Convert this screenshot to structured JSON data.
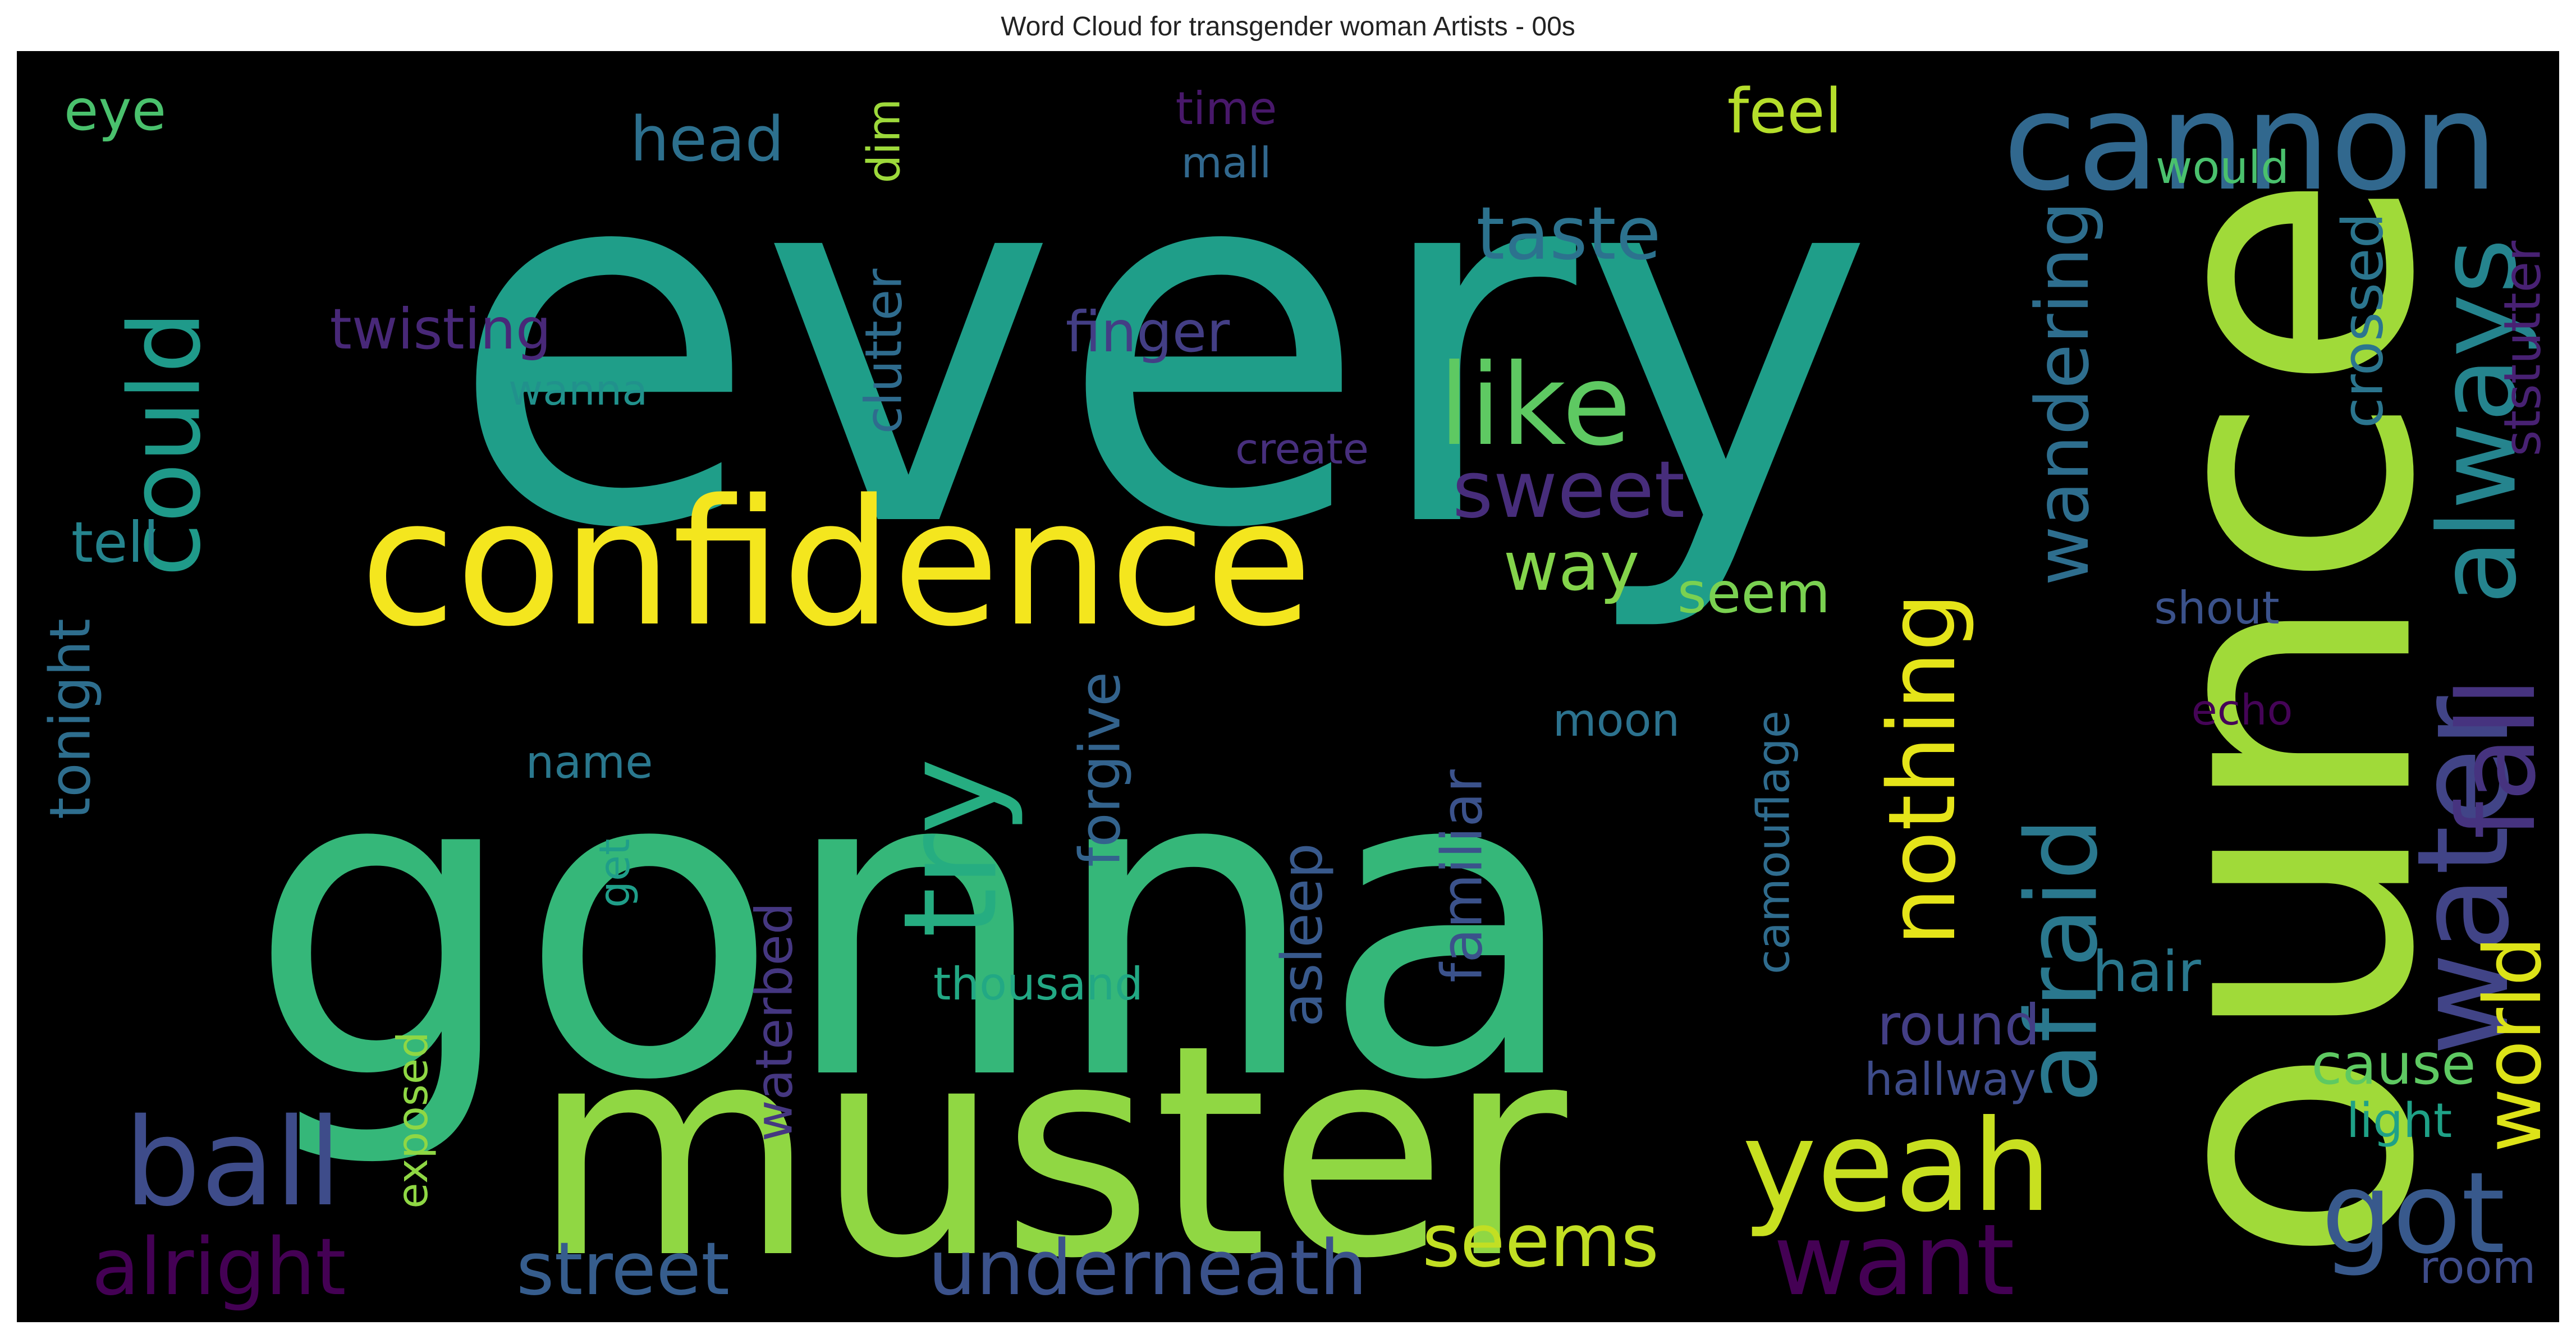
{
  "chart_data": {
    "type": "wordcloud",
    "title": "Word Cloud for transgender woman Artists - 00s",
    "background": "#000000",
    "words": [
      {
        "text": "every",
        "color": "#1f9e89"
      },
      {
        "text": "gonna",
        "color": "#35b779"
      },
      {
        "text": "muster",
        "color": "#90d743"
      },
      {
        "text": "ounce",
        "color": "#a0da39"
      },
      {
        "text": "confidence",
        "color": "#f4e61e"
      },
      {
        "text": "cannon",
        "color": "#31688e"
      },
      {
        "text": "like",
        "color": "#5ec962"
      },
      {
        "text": "try",
        "color": "#26ad81"
      },
      {
        "text": "could",
        "color": "#1f9a8a"
      },
      {
        "text": "ball",
        "color": "#3e4c8a"
      },
      {
        "text": "yeah",
        "color": "#c8e020"
      },
      {
        "text": "water",
        "color": "#414487"
      },
      {
        "text": "always",
        "color": "#25848e"
      },
      {
        "text": "nothing",
        "color": "#e5e419"
      },
      {
        "text": "afraid",
        "color": "#2a788e"
      },
      {
        "text": "wandering",
        "color": "#2e6e8e"
      },
      {
        "text": "world",
        "color": "#dde318"
      },
      {
        "text": "fall",
        "color": "#46337f"
      },
      {
        "text": "got",
        "color": "#38598c"
      },
      {
        "text": "want",
        "color": "#440154"
      },
      {
        "text": "underneath",
        "color": "#3b528b"
      },
      {
        "text": "street",
        "color": "#365d8d"
      },
      {
        "text": "alright",
        "color": "#440154"
      },
      {
        "text": "seems",
        "color": "#c2df23"
      },
      {
        "text": "sweet",
        "color": "#472d7b"
      },
      {
        "text": "taste",
        "color": "#2c728e"
      },
      {
        "text": "way",
        "color": "#84d44b"
      },
      {
        "text": "feel",
        "color": "#b5de2b"
      },
      {
        "text": "head",
        "color": "#2d708e"
      },
      {
        "text": "eye",
        "color": "#4ac16d"
      },
      {
        "text": "twisting",
        "color": "#482878"
      },
      {
        "text": "finger",
        "color": "#433e85"
      },
      {
        "text": "wanna",
        "color": "#21918c"
      },
      {
        "text": "clutter",
        "color": "#2f6c8e"
      },
      {
        "text": "dim",
        "color": "#9dd93b"
      },
      {
        "text": "time",
        "color": "#48186a"
      },
      {
        "text": "mall",
        "color": "#31688e"
      },
      {
        "text": "create",
        "color": "#472f7d"
      },
      {
        "text": "would",
        "color": "#4ac16d"
      },
      {
        "text": "crossed",
        "color": "#2b758e"
      },
      {
        "text": "ststutter",
        "color": "#482173"
      },
      {
        "text": "seem",
        "color": "#7ad151"
      },
      {
        "text": "shout",
        "color": "#3b528b"
      },
      {
        "text": "echo",
        "color": "#450457"
      },
      {
        "text": "tell",
        "color": "#25848e"
      },
      {
        "text": "tonight",
        "color": "#2e6e8e"
      },
      {
        "text": "forgive",
        "color": "#33638d"
      },
      {
        "text": "moon",
        "color": "#2c728e"
      },
      {
        "text": "name",
        "color": "#2a788e"
      },
      {
        "text": "familiar",
        "color": "#3b528b"
      },
      {
        "text": "asleep",
        "color": "#38598c"
      },
      {
        "text": "camouflage",
        "color": "#2f6c8e"
      },
      {
        "text": "get",
        "color": "#1f9e89"
      },
      {
        "text": "waterbed",
        "color": "#453781"
      },
      {
        "text": "thousand",
        "color": "#22a884"
      },
      {
        "text": "hair",
        "color": "#2a788e"
      },
      {
        "text": "round",
        "color": "#433e85"
      },
      {
        "text": "hallway",
        "color": "#3e4c8a"
      },
      {
        "text": "cause",
        "color": "#5ec962"
      },
      {
        "text": "light",
        "color": "#1fa187"
      },
      {
        "text": "room",
        "color": "#3e4c8a"
      },
      {
        "text": "exposed",
        "color": "#8fd744"
      }
    ]
  }
}
